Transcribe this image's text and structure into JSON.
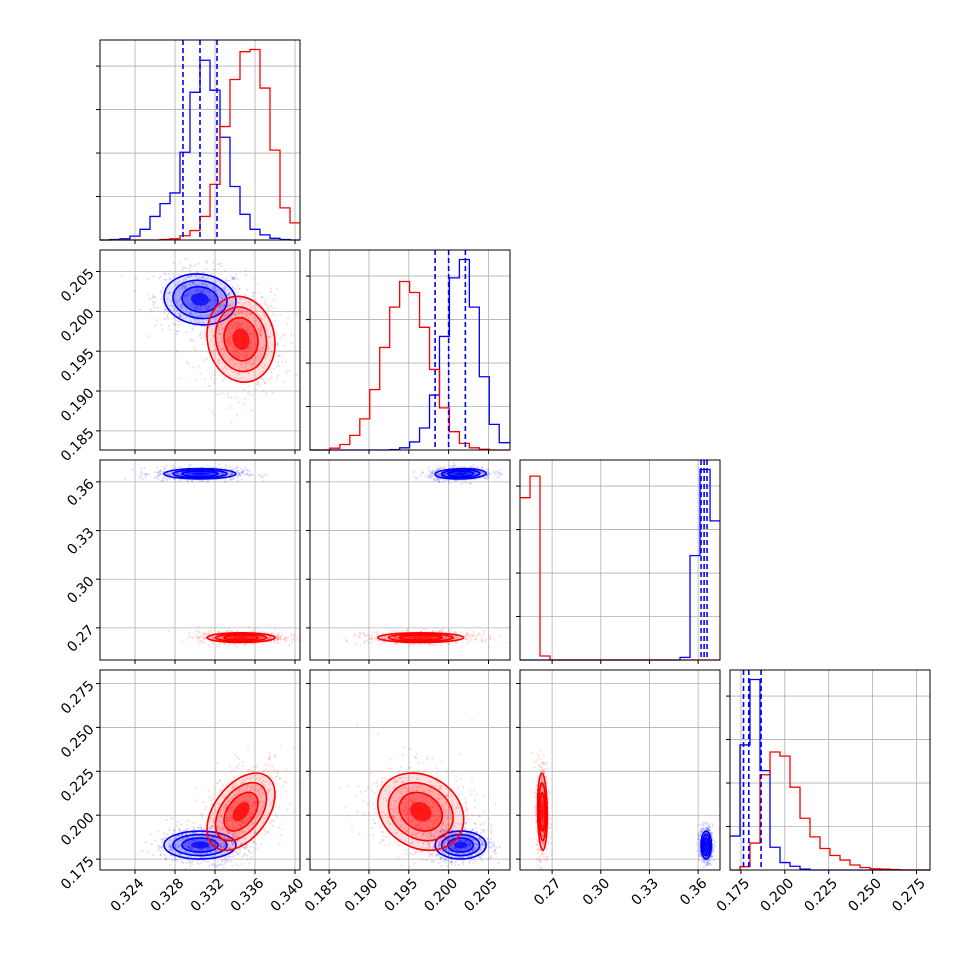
{
  "colors": {
    "series_a": "#0000ff",
    "series_b": "#ff0000",
    "grid": "#b0b0b0",
    "axis": "#000000"
  },
  "chart_data": {
    "type": "corner",
    "grid": true,
    "params": [
      {
        "id": "p1",
        "range": [
          0.3205,
          0.3405
        ],
        "ticks": [
          0.324,
          0.328,
          0.332,
          0.336,
          0.34
        ],
        "tick_labels": [
          "0.324",
          "0.328",
          "0.332",
          "0.336",
          "0.340"
        ]
      },
      {
        "id": "p2",
        "range": [
          0.1826,
          0.2077
        ],
        "ticks": [
          0.185,
          0.19,
          0.195,
          0.2,
          0.205
        ],
        "tick_labels": [
          "0.185",
          "0.190",
          "0.195",
          "0.200",
          "0.205"
        ]
      },
      {
        "id": "p3",
        "range": [
          0.2502,
          0.3735
        ],
        "ticks": [
          0.27,
          0.3,
          0.33,
          0.36
        ],
        "tick_labels": [
          "0.27",
          "0.30",
          "0.33",
          "0.36"
        ]
      },
      {
        "id": "p4",
        "range": [
          0.1688,
          0.2827
        ],
        "ticks": [
          0.175,
          0.2,
          0.225,
          0.25,
          0.275
        ],
        "tick_labels": [
          "0.175",
          "0.200",
          "0.225",
          "0.250",
          "0.275"
        ]
      }
    ],
    "series": [
      {
        "id": "series_a",
        "color": "#0000ff",
        "mean": [
          0.3305,
          0.2015,
          0.365,
          0.183
        ],
        "std": [
          0.0018,
          0.0016,
          0.0016,
          0.004
        ],
        "corr": {
          "0-1": -0.1,
          "0-2": 0.0,
          "0-3": 0.0,
          "1-2": 0.1,
          "1-3": 0.0,
          "2-3": 0.0
        },
        "quantile_lines": [
          [
            0.3288,
            0.3305,
            0.3322
          ],
          [
            0.1983,
            0.2,
            0.2021
          ],
          [
            0.3618,
            0.3637,
            0.3655
          ],
          [
            0.1765,
            0.1795,
            0.1865
          ]
        ]
      },
      {
        "id": "series_b",
        "color": "#ff0000",
        "mean": [
          0.3346,
          0.1965,
          0.264,
          0.202
        ],
        "std": [
          0.0017,
          0.0027,
          0.0015,
          0.011
        ],
        "corr": {
          "0-1": -0.1,
          "0-2": 0.0,
          "0-3": 0.45,
          "1-2": 0.0,
          "1-3": -0.2,
          "2-3": -0.1
        }
      }
    ],
    "histograms": [
      {
        "param": 0,
        "bins": [
          0.3205,
          0.3215,
          0.3225,
          0.3235,
          0.3245,
          0.3255,
          0.3265,
          0.3275,
          0.3285,
          0.3295,
          0.3305,
          0.3315,
          0.3325,
          0.3335,
          0.3345,
          0.3355,
          0.3365,
          0.3375,
          0.3385,
          0.3395,
          0.3405
        ],
        "series_a": [
          0,
          1,
          3,
          9,
          25,
          55,
          85,
          110,
          205,
          345,
          420,
          350,
          240,
          125,
          60,
          25,
          12,
          4,
          1,
          0
        ],
        "series_b": [
          0,
          0,
          0,
          0,
          0,
          0,
          1,
          3,
          10,
          22,
          55,
          130,
          265,
          375,
          440,
          445,
          355,
          210,
          75,
          40
        ]
      },
      {
        "param": 1,
        "bins": [
          0.1826,
          0.18385,
          0.1851,
          0.18635,
          0.1876,
          0.18885,
          0.1901,
          0.19135,
          0.1926,
          0.19385,
          0.1951,
          0.19635,
          0.1976,
          0.19885,
          0.2001,
          0.20135,
          0.2026,
          0.20385,
          0.2051,
          0.20635,
          0.2077
        ],
        "series_a": [
          0,
          0,
          0,
          0,
          0,
          0,
          0,
          0,
          1,
          6,
          22,
          60,
          150,
          310,
          470,
          520,
          390,
          200,
          70,
          20
        ],
        "series_b": [
          0,
          0,
          5,
          15,
          40,
          85,
          165,
          280,
          390,
          460,
          430,
          335,
          220,
          115,
          50,
          18,
          6,
          2,
          0,
          0
        ]
      },
      {
        "param": 2,
        "bins": [
          0.2502,
          0.25637,
          0.26253,
          0.2687,
          0.27487,
          0.28103,
          0.2872,
          0.29337,
          0.29953,
          0.3057,
          0.31187,
          0.31803,
          0.3242,
          0.33037,
          0.33653,
          0.3427,
          0.34887,
          0.35503,
          0.3612,
          0.36737,
          0.37353
        ],
        "series_a": [
          0,
          0,
          0,
          0,
          0,
          0,
          0,
          0,
          0,
          0,
          0,
          0,
          0,
          0,
          0,
          0,
          8,
          315,
          575,
          420
        ],
        "series_b": [
          490,
          555,
          12,
          0,
          0,
          0,
          0,
          0,
          0,
          0,
          0,
          0,
          0,
          0,
          0,
          0,
          0,
          0,
          0,
          0
        ]
      },
      {
        "param": 3,
        "bins": [
          0.1688,
          0.1745,
          0.18019,
          0.18589,
          0.19158,
          0.19728,
          0.20297,
          0.20867,
          0.21436,
          0.22006,
          0.22575,
          0.23145,
          0.23714,
          0.24284,
          0.24853,
          0.25423,
          0.25992,
          0.26562,
          0.27131,
          0.27701,
          0.2827
        ],
        "series_a": [
          82,
          302,
          460,
          240,
          55,
          18,
          9,
          2,
          0,
          0,
          0,
          0,
          0,
          0,
          0,
          0,
          0,
          0,
          0,
          0
        ],
        "series_b": [
          0,
          8,
          65,
          230,
          285,
          275,
          200,
          125,
          80,
          52,
          35,
          24,
          12,
          6,
          3,
          2,
          1,
          0,
          0,
          0
        ]
      }
    ]
  }
}
